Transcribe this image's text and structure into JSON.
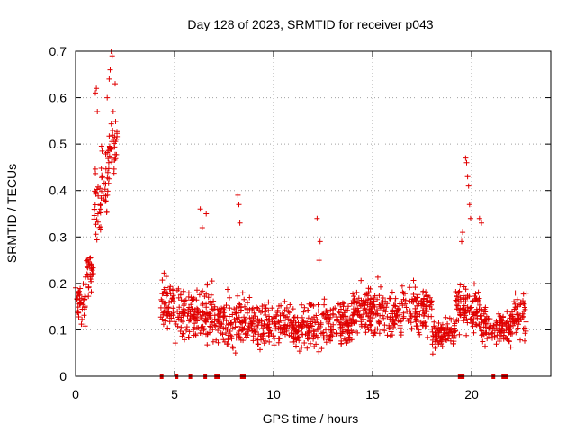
{
  "chart_data": {
    "type": "scatter",
    "title": "Day 128 of 2023, SRMTID for receiver p043",
    "xlabel": "GPS time / hours",
    "ylabel": "SRMTID / TECUs",
    "xlim": [
      0,
      24
    ],
    "ylim": [
      0,
      0.7
    ],
    "x_ticks": [
      0,
      5,
      10,
      15,
      20
    ],
    "x_tick_labels": [
      "0",
      "5",
      "10",
      "15",
      "20"
    ],
    "y_ticks": [
      0,
      0.1,
      0.2,
      0.3,
      0.4,
      0.5,
      0.6,
      0.7
    ],
    "y_tick_labels": [
      "0",
      "0.1",
      "0.2",
      "0.3",
      "0.4",
      "0.5",
      "0.6",
      "0.7"
    ],
    "grid": true,
    "marker": "plus",
    "color": "#e00000",
    "zero_value_points_x": [
      4.35,
      5.1,
      5.8,
      6.55,
      7.1,
      7.2,
      8.4,
      8.5,
      19.4,
      19.55,
      21.1,
      21.6,
      21.75
    ],
    "segments": [
      {
        "x_start": 0.0,
        "x_end": 0.5,
        "y_low": 0.1,
        "y_high": 0.22
      },
      {
        "x_start": 0.5,
        "x_end": 0.9,
        "y_low": 0.15,
        "y_high": 0.3
      },
      {
        "x_start": 0.9,
        "x_end": 1.3,
        "y_low": 0.25,
        "y_high": 0.5
      },
      {
        "x_start": 1.3,
        "x_end": 1.7,
        "y_low": 0.3,
        "y_high": 0.55
      },
      {
        "x_start": 1.7,
        "x_end": 2.1,
        "y_low": 0.38,
        "y_high": 0.62
      },
      {
        "x_start": 4.3,
        "x_end": 5.0,
        "y_low": 0.07,
        "y_high": 0.25
      },
      {
        "x_start": 5.0,
        "x_end": 7.0,
        "y_low": 0.05,
        "y_high": 0.22
      },
      {
        "x_start": 7.0,
        "x_end": 9.0,
        "y_low": 0.04,
        "y_high": 0.2
      },
      {
        "x_start": 9.0,
        "x_end": 14.0,
        "y_low": 0.04,
        "y_high": 0.18
      },
      {
        "x_start": 14.0,
        "x_end": 18.0,
        "y_low": 0.06,
        "y_high": 0.22
      },
      {
        "x_start": 18.0,
        "x_end": 19.2,
        "y_low": 0.04,
        "y_high": 0.14
      },
      {
        "x_start": 19.2,
        "x_end": 20.5,
        "y_low": 0.07,
        "y_high": 0.22
      },
      {
        "x_start": 20.5,
        "x_end": 22.0,
        "y_low": 0.05,
        "y_high": 0.16
      },
      {
        "x_start": 22.0,
        "x_end": 22.8,
        "y_low": 0.07,
        "y_high": 0.2
      }
    ],
    "peaks": [
      {
        "x": 1.0,
        "y": 0.61
      },
      {
        "x": 1.05,
        "y": 0.62
      },
      {
        "x": 1.1,
        "y": 0.57
      },
      {
        "x": 1.6,
        "y": 0.6
      },
      {
        "x": 1.7,
        "y": 0.64
      },
      {
        "x": 1.75,
        "y": 0.66
      },
      {
        "x": 1.8,
        "y": 0.7
      },
      {
        "x": 1.85,
        "y": 0.69
      },
      {
        "x": 1.9,
        "y": 0.57
      },
      {
        "x": 2.0,
        "y": 0.63
      },
      {
        "x": 6.3,
        "y": 0.36
      },
      {
        "x": 6.6,
        "y": 0.35
      },
      {
        "x": 6.4,
        "y": 0.32
      },
      {
        "x": 8.2,
        "y": 0.39
      },
      {
        "x": 8.25,
        "y": 0.37
      },
      {
        "x": 8.3,
        "y": 0.33
      },
      {
        "x": 12.2,
        "y": 0.34
      },
      {
        "x": 12.3,
        "y": 0.25
      },
      {
        "x": 12.35,
        "y": 0.29
      },
      {
        "x": 19.7,
        "y": 0.47
      },
      {
        "x": 19.75,
        "y": 0.46
      },
      {
        "x": 19.8,
        "y": 0.43
      },
      {
        "x": 19.85,
        "y": 0.41
      },
      {
        "x": 19.9,
        "y": 0.37
      },
      {
        "x": 19.95,
        "y": 0.34
      },
      {
        "x": 20.4,
        "y": 0.34
      },
      {
        "x": 20.5,
        "y": 0.33
      },
      {
        "x": 19.5,
        "y": 0.29
      },
      {
        "x": 19.55,
        "y": 0.31
      }
    ]
  }
}
